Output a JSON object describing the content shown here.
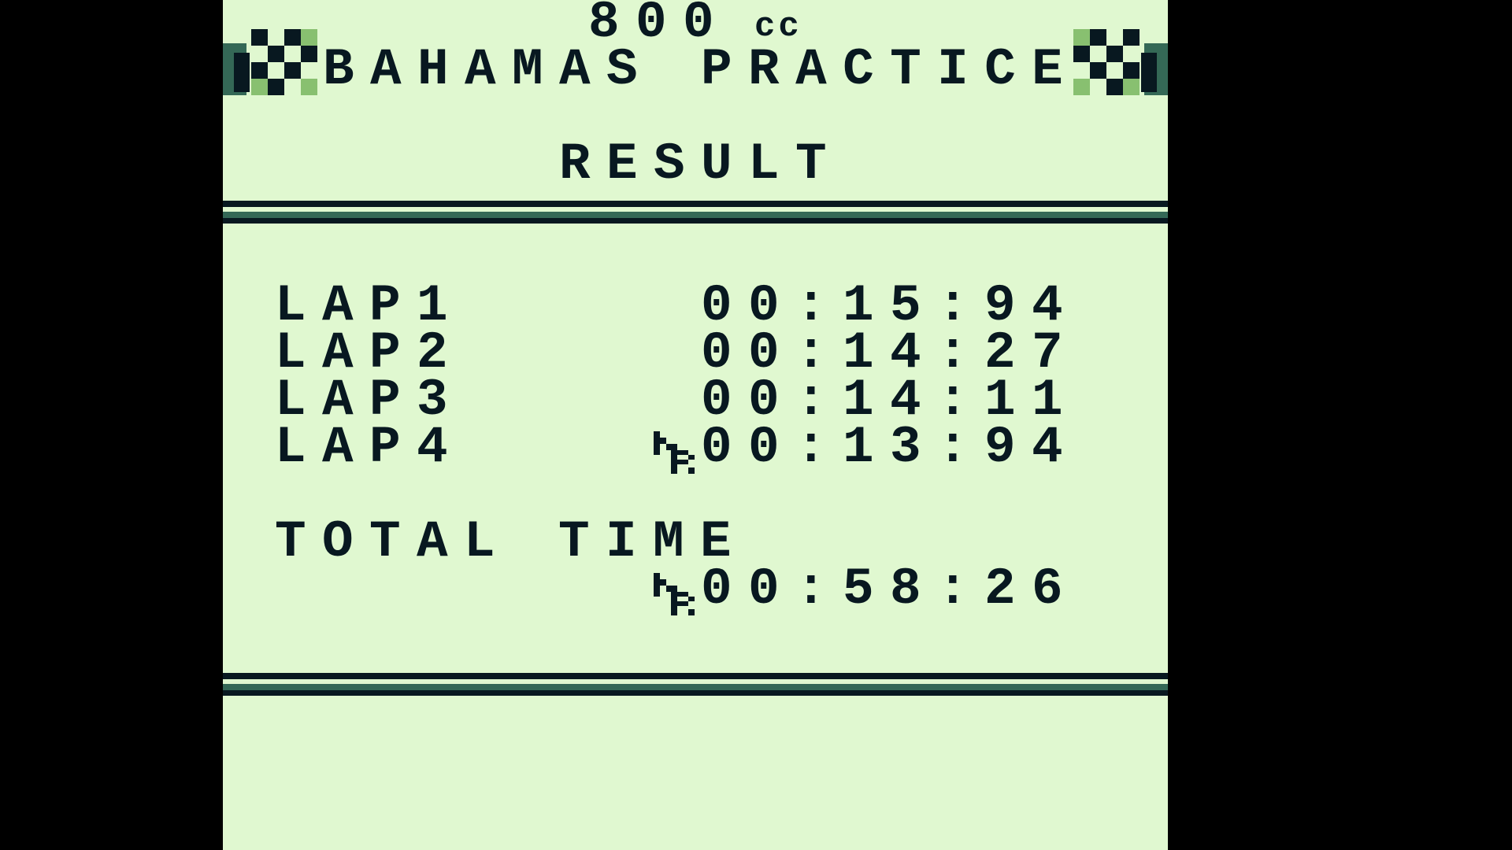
{
  "header": {
    "engine_class_number": "800",
    "engine_class_unit": "cc",
    "course_title": "BAHAMAS PRACTICE",
    "left_icon": "checkered-flag-icon",
    "right_icon": "checkered-flag-icon"
  },
  "result_title": "RESULT",
  "laps": [
    {
      "label": "LAP1",
      "time": "00:15:94",
      "best": false
    },
    {
      "label": "LAP2",
      "time": "00:14:27",
      "best": false
    },
    {
      "label": "LAP3",
      "time": "00:14:11",
      "best": false
    },
    {
      "label": "LAP4",
      "time": "00:13:94",
      "best": true
    }
  ],
  "total": {
    "label": "TOTAL TIME",
    "time": "00:58:26",
    "best": true
  },
  "best_marker_icon": "new-record-icon",
  "colors": {
    "background": "#e0f8d0",
    "dark": "#081820",
    "mid": "#346856",
    "light": "#88c070",
    "letterbox": "#000000"
  }
}
